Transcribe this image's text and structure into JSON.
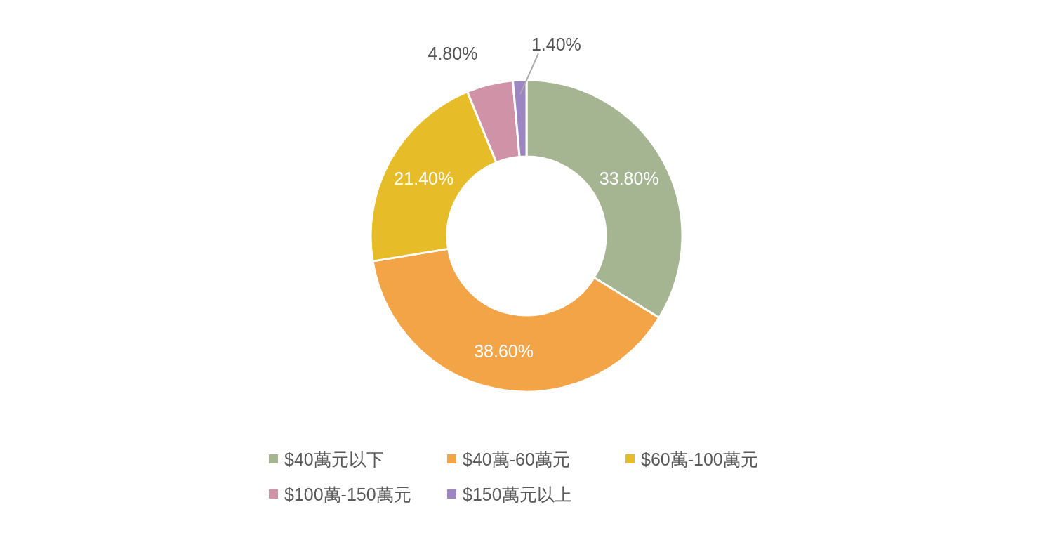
{
  "chart_data": {
    "type": "donut",
    "categories": [
      "$40萬元以下",
      "$40萬-60萬元",
      "$60萬-100萬元",
      "$100萬-150萬元",
      "$150萬元以上"
    ],
    "values": [
      33.8,
      38.6,
      21.4,
      4.8,
      1.4
    ],
    "colors": [
      "#a5b592",
      "#f3a447",
      "#e7bc29",
      "#d092a7",
      "#9c85c0"
    ],
    "value_labels": [
      "33.80%",
      "38.60%",
      "21.40%",
      "4.80%",
      "1.40%"
    ],
    "legend": "bottom"
  }
}
